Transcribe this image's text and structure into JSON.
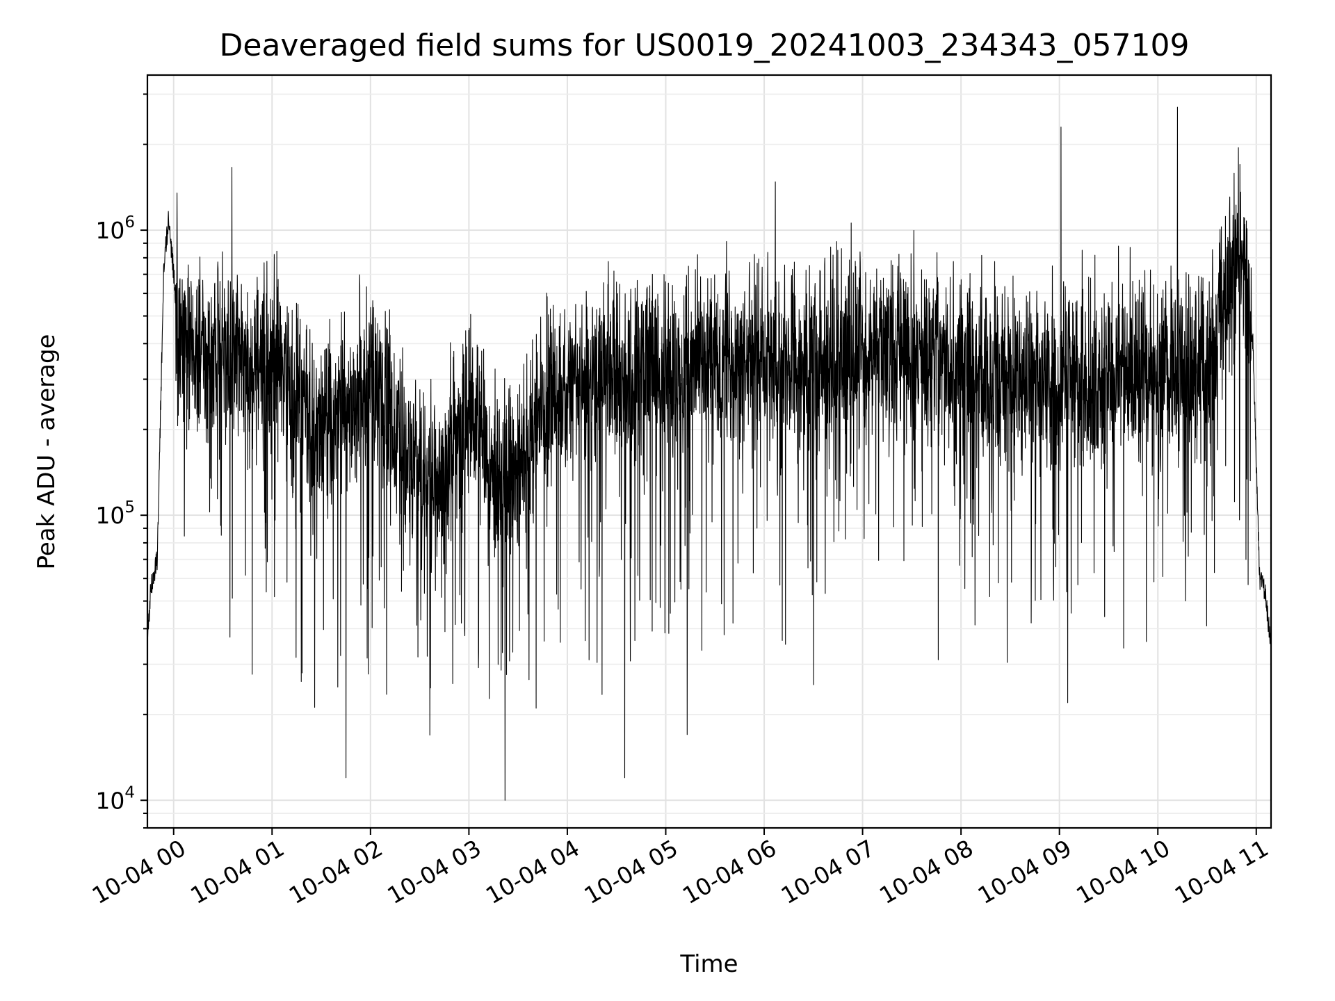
{
  "chart_data": {
    "type": "line",
    "title": "Deaveraged field sums for US0019_20241003_234343_057109",
    "xlabel": "Time",
    "ylabel": "Peak ADU - average",
    "x_range": [
      "2024-10-03 23:44",
      "2024-10-04 11:09"
    ],
    "y_scale": "log",
    "ylim": [
      8000,
      3500000
    ],
    "x_ticks": [
      "10-04 00",
      "10-04 01",
      "10-04 02",
      "10-04 03",
      "10-04 04",
      "10-04 05",
      "10-04 06",
      "10-04 07",
      "10-04 08",
      "10-04 09",
      "10-04 10",
      "10-04 11"
    ],
    "y_ticks": [
      {
        "value": 10000,
        "base": "10",
        "exp": "4"
      },
      {
        "value": 100000,
        "base": "10",
        "exp": "5"
      },
      {
        "value": 1000000,
        "base": "10",
        "exp": "6"
      }
    ],
    "grid": true,
    "series": [
      {
        "color": "#000000",
        "note_values_approx": "dense noisy time series, baseline approx 2e5 to 6e5",
        "x": [
          "2024-10-03 23:44",
          "2024-10-03 23:46",
          "2024-10-03 23:50",
          "2024-10-03 23:54",
          "2024-10-03 23:57",
          "2024-10-04 00:00",
          "2024-10-04 00:03",
          "2024-10-04 00:10",
          "2024-10-04 00:18",
          "2024-10-04 00:35",
          "2024-10-04 00:45",
          "2024-10-04 01:00",
          "2024-10-04 01:15",
          "2024-10-04 01:30",
          "2024-10-04 01:45",
          "2024-10-04 02:00",
          "2024-10-04 02:20",
          "2024-10-04 02:40",
          "2024-10-04 03:00",
          "2024-10-04 03:20",
          "2024-10-04 03:40",
          "2024-10-04 04:00",
          "2024-10-04 04:30",
          "2024-10-04 05:00",
          "2024-10-04 05:30",
          "2024-10-04 06:00",
          "2024-10-04 06:30",
          "2024-10-04 07:00",
          "2024-10-04 07:30",
          "2024-10-04 08:00",
          "2024-10-04 08:30",
          "2024-10-04 09:00",
          "2024-10-04 09:30",
          "2024-10-04 10:00",
          "2024-10-04 10:30",
          "2024-10-04 10:50",
          "2024-10-04 10:58",
          "2024-10-04 11:02",
          "2024-10-04 11:05",
          "2024-10-04 11:09"
        ],
        "y": [
          35000,
          55000,
          70000,
          750000,
          1100000,
          700000,
          450000,
          400000,
          350000,
          380000,
          320000,
          350000,
          260000,
          200000,
          220000,
          300000,
          160000,
          120000,
          250000,
          120000,
          200000,
          300000,
          320000,
          330000,
          340000,
          350000,
          360000,
          360000,
          350000,
          330000,
          320000,
          300000,
          300000,
          320000,
          330000,
          900000,
          400000,
          60000,
          55000,
          35000
        ]
      }
    ],
    "spikes": [
      {
        "x": "2024-10-04 00:02",
        "y": 1350000
      },
      {
        "x": "2024-10-04 01:45",
        "y": 12000
      },
      {
        "x": "2024-10-04 03:22",
        "y": 10000
      },
      {
        "x": "2024-10-04 04:35",
        "y": 12000
      },
      {
        "x": "2024-10-04 05:13",
        "y": 17000
      },
      {
        "x": "2024-10-04 09:01",
        "y": 2300000
      },
      {
        "x": "2024-10-04 09:05",
        "y": 22000
      },
      {
        "x": "2024-10-04 10:12",
        "y": 2700000
      },
      {
        "x": "2024-10-04 10:50",
        "y": 1700000
      }
    ]
  }
}
